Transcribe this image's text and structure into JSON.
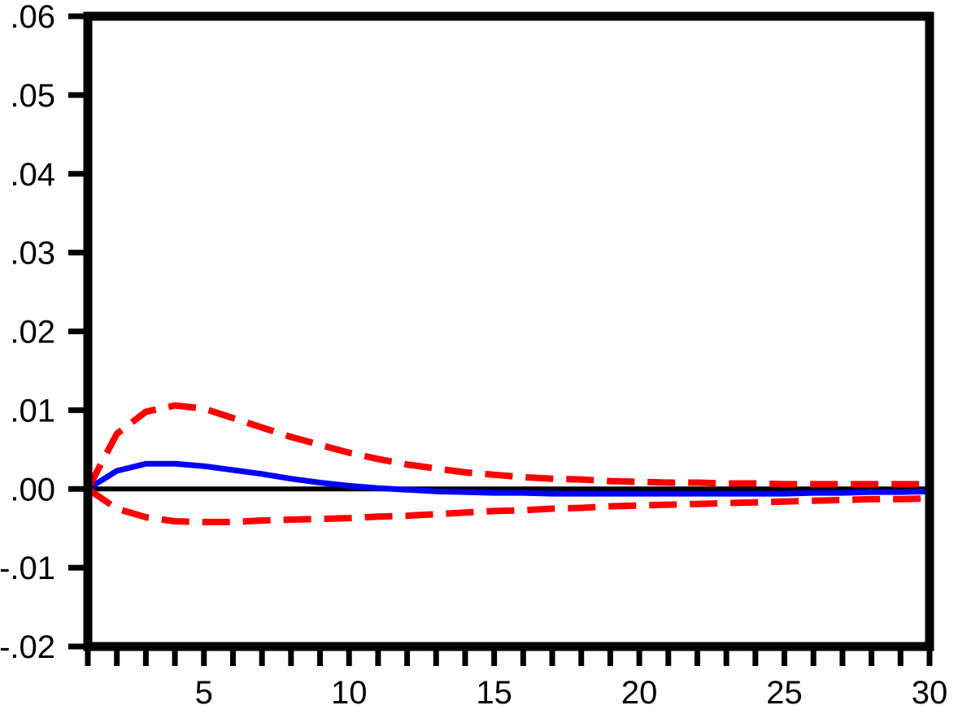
{
  "chart_data": {
    "type": "line",
    "title": "",
    "xlabel": "",
    "ylabel": "",
    "xlim": [
      1,
      30
    ],
    "ylim": [
      -0.02,
      0.06
    ],
    "x_ticks": [
      5,
      10,
      15,
      20,
      25,
      30
    ],
    "x_tick_labels": [
      "5",
      "10",
      "15",
      "20",
      "25",
      "30"
    ],
    "x_minor_ticks": [
      1,
      2,
      3,
      4,
      5,
      6,
      7,
      8,
      9,
      10,
      11,
      12,
      13,
      14,
      15,
      16,
      17,
      18,
      19,
      20,
      21,
      22,
      23,
      24,
      25,
      26,
      27,
      28,
      29,
      30
    ],
    "y_ticks": [
      -0.02,
      -0.01,
      0.0,
      0.01,
      0.02,
      0.03,
      0.04,
      0.05,
      0.06
    ],
    "y_tick_labels": [
      "-.02",
      "-.01",
      ".00",
      ".01",
      ".02",
      ".03",
      ".04",
      ".05",
      ".06"
    ],
    "grid": false,
    "zero_line": true,
    "x": [
      1,
      2,
      3,
      4,
      5,
      6,
      7,
      8,
      9,
      10,
      11,
      12,
      13,
      14,
      15,
      16,
      17,
      18,
      19,
      20,
      21,
      22,
      23,
      24,
      25,
      26,
      27,
      28,
      29,
      30
    ],
    "series": [
      {
        "role": "response",
        "style": "solid",
        "color": "#0000ff",
        "values": [
          0.0,
          0.0023,
          0.0032,
          0.0032,
          0.0029,
          0.0024,
          0.0019,
          0.0013,
          0.0008,
          0.0004,
          0.0001,
          -0.0001,
          -0.0003,
          -0.0004,
          -0.0005,
          -0.0005,
          -0.0006,
          -0.0006,
          -0.0006,
          -0.0006,
          -0.0006,
          -0.0006,
          -0.0006,
          -0.0006,
          -0.0006,
          -0.0005,
          -0.0005,
          -0.0004,
          -0.0004,
          -0.0003
        ]
      },
      {
        "role": "upper_band",
        "style": "dashed",
        "color": "#ff0000",
        "values": [
          0.0,
          0.007,
          0.0098,
          0.0106,
          0.0102,
          0.009,
          0.0078,
          0.0066,
          0.0056,
          0.0046,
          0.0038,
          0.0031,
          0.0026,
          0.0021,
          0.0018,
          0.0015,
          0.0013,
          0.0012,
          0.001,
          0.0009,
          0.0008,
          0.0008,
          0.0007,
          0.0007,
          0.0006,
          0.0006,
          0.0006,
          0.0006,
          0.0006,
          0.0006
        ]
      },
      {
        "role": "lower_band",
        "style": "dashed",
        "color": "#ff0000",
        "values": [
          0.0,
          -0.0025,
          -0.0036,
          -0.0041,
          -0.0042,
          -0.0042,
          -0.004,
          -0.0039,
          -0.0038,
          -0.0037,
          -0.0035,
          -0.0034,
          -0.0032,
          -0.003,
          -0.0028,
          -0.0027,
          -0.0025,
          -0.0024,
          -0.0022,
          -0.0021,
          -0.002,
          -0.0019,
          -0.0018,
          -0.0017,
          -0.0016,
          -0.0015,
          -0.0014,
          -0.0013,
          -0.0013,
          -0.0012
        ]
      }
    ]
  }
}
